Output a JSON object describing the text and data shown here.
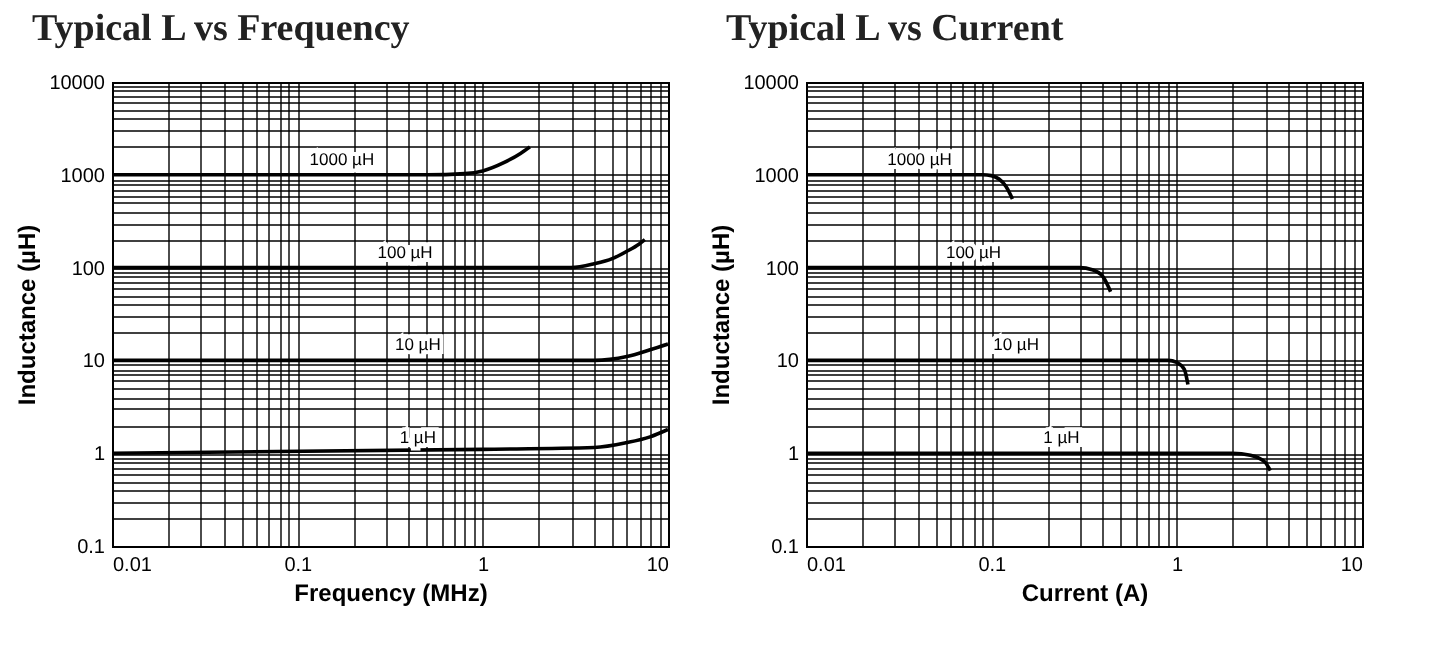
{
  "chart_data": [
    {
      "type": "line",
      "title": "Typical L vs Frequency",
      "xlabel": "Frequency (MHz)",
      "ylabel": "Inductance (µH)",
      "log": "xy",
      "grid": true,
      "xlim": [
        0.01,
        10
      ],
      "ylim": [
        0.1,
        10000
      ],
      "xticks": [
        0.01,
        {
          "value": 0.02,
          "label": null
        },
        {
          "value": 0.03,
          "label": null
        },
        {
          "value": 0.04,
          "label": null
        },
        {
          "value": 0.05,
          "label": null
        },
        {
          "value": 0.06,
          "label": null
        },
        {
          "value": 0.07,
          "label": null
        },
        {
          "value": 0.08,
          "label": null
        },
        {
          "value": 0.09,
          "label": null
        },
        0.1,
        {
          "value": 0.2,
          "label": null
        },
        {
          "value": 0.3,
          "label": null
        },
        {
          "value": 0.4,
          "label": null
        },
        {
          "value": 0.5,
          "label": null
        },
        {
          "value": 0.6,
          "label": null
        },
        {
          "value": 0.7,
          "label": null
        },
        {
          "value": 0.8,
          "label": null
        },
        {
          "value": 0.9,
          "label": null
        },
        1,
        {
          "value": 2,
          "label": null
        },
        {
          "value": 3,
          "label": null
        },
        {
          "value": 4,
          "label": null
        },
        {
          "value": 5,
          "label": null
        },
        {
          "value": 6,
          "label": null
        },
        {
          "value": 7,
          "label": null
        },
        {
          "value": 8,
          "label": null
        },
        {
          "value": 9,
          "label": null
        },
        10
      ],
      "yticks": [
        0.1,
        {
          "value": 0.2,
          "label": null
        },
        {
          "value": 0.3,
          "label": null
        },
        {
          "value": 0.4,
          "label": null
        },
        {
          "value": 0.5,
          "label": null
        },
        {
          "value": 0.6,
          "label": null
        },
        {
          "value": 0.7,
          "label": null
        },
        {
          "value": 0.8,
          "label": null
        },
        {
          "value": 0.9,
          "label": null
        },
        1,
        {
          "value": 2,
          "label": null
        },
        {
          "value": 3,
          "label": null
        },
        {
          "value": 4,
          "label": null
        },
        {
          "value": 5,
          "label": null
        },
        {
          "value": 6,
          "label": null
        },
        {
          "value": 7,
          "label": null
        },
        {
          "value": 8,
          "label": null
        },
        {
          "value": 9,
          "label": null
        },
        10,
        {
          "value": 20,
          "label": null
        },
        {
          "value": 30,
          "label": null
        },
        {
          "value": 40,
          "label": null
        },
        {
          "value": 50,
          "label": null
        },
        {
          "value": 60,
          "label": null
        },
        {
          "value": 70,
          "label": null
        },
        {
          "value": 80,
          "label": null
        },
        {
          "value": 90,
          "label": null
        },
        100,
        {
          "value": 200,
          "label": null
        },
        {
          "value": 300,
          "label": null
        },
        {
          "value": 400,
          "label": null
        },
        {
          "value": 500,
          "label": null
        },
        {
          "value": 600,
          "label": null
        },
        {
          "value": 700,
          "label": null
        },
        {
          "value": 800,
          "label": null
        },
        {
          "value": 900,
          "label": null
        },
        1000,
        {
          "value": 2000,
          "label": null
        },
        {
          "value": 3000,
          "label": null
        },
        {
          "value": 4000,
          "label": null
        },
        {
          "value": 5000,
          "label": null
        },
        {
          "value": 6000,
          "label": null
        },
        {
          "value": 7000,
          "label": null
        },
        {
          "value": 8000,
          "label": null
        },
        {
          "value": 9000,
          "label": null
        },
        10000
      ],
      "series": [
        {
          "name": "1000 µH",
          "color": "#000000",
          "x": [
            0.01,
            0.5,
            0.8,
            1,
            1.3,
            1.6,
            1.8
          ],
          "values": [
            1000,
            1000,
            1030,
            1100,
            1350,
            1700,
            2000
          ]
        },
        {
          "name": "100 µH",
          "color": "#000000",
          "x": [
            0.01,
            3,
            4,
            5,
            6,
            7,
            7.5
          ],
          "values": [
            100,
            100,
            110,
            125,
            150,
            180,
            200
          ]
        },
        {
          "name": "10 µH",
          "color": "#000000",
          "x": [
            0.01,
            4,
            6,
            8,
            10
          ],
          "values": [
            10,
            10,
            11,
            13,
            15
          ]
        },
        {
          "name": "1 µH",
          "color": "#000000",
          "x": [
            0.01,
            1,
            4,
            6,
            8,
            10
          ],
          "values": [
            1,
            1.1,
            1.15,
            1.3,
            1.5,
            1.8
          ]
        }
      ]
    },
    {
      "type": "line",
      "title": "Typical L vs Current",
      "xlabel": "Current (A)",
      "ylabel": "Inductance (µH)",
      "log": "xy",
      "grid": true,
      "xlim": [
        0.01,
        10
      ],
      "ylim": [
        0.1,
        10000
      ],
      "xticks": [
        0.01,
        {
          "value": 0.02,
          "label": null
        },
        {
          "value": 0.03,
          "label": null
        },
        {
          "value": 0.04,
          "label": null
        },
        {
          "value": 0.05,
          "label": null
        },
        {
          "value": 0.06,
          "label": null
        },
        {
          "value": 0.07,
          "label": null
        },
        {
          "value": 0.08,
          "label": null
        },
        {
          "value": 0.09,
          "label": null
        },
        0.1,
        {
          "value": 0.2,
          "label": null
        },
        {
          "value": 0.3,
          "label": null
        },
        {
          "value": 0.4,
          "label": null
        },
        {
          "value": 0.5,
          "label": null
        },
        {
          "value": 0.6,
          "label": null
        },
        {
          "value": 0.7,
          "label": null
        },
        {
          "value": 0.8,
          "label": null
        },
        {
          "value": 0.9,
          "label": null
        },
        1,
        {
          "value": 2,
          "label": null
        },
        {
          "value": 3,
          "label": null
        },
        {
          "value": 4,
          "label": null
        },
        {
          "value": 5,
          "label": null
        },
        {
          "value": 6,
          "label": null
        },
        {
          "value": 7,
          "label": null
        },
        {
          "value": 8,
          "label": null
        },
        {
          "value": 9,
          "label": null
        },
        10
      ],
      "yticks": [
        0.1,
        {
          "value": 0.2,
          "label": null
        },
        {
          "value": 0.3,
          "label": null
        },
        {
          "value": 0.4,
          "label": null
        },
        {
          "value": 0.5,
          "label": null
        },
        {
          "value": 0.6,
          "label": null
        },
        {
          "value": 0.7,
          "label": null
        },
        {
          "value": 0.8,
          "label": null
        },
        {
          "value": 0.9,
          "label": null
        },
        1,
        {
          "value": 2,
          "label": null
        },
        {
          "value": 3,
          "label": null
        },
        {
          "value": 4,
          "label": null
        },
        {
          "value": 5,
          "label": null
        },
        {
          "value": 6,
          "label": null
        },
        {
          "value": 7,
          "label": null
        },
        {
          "value": 8,
          "label": null
        },
        {
          "value": 9,
          "label": null
        },
        10,
        {
          "value": 20,
          "label": null
        },
        {
          "value": 30,
          "label": null
        },
        {
          "value": 40,
          "label": null
        },
        {
          "value": 50,
          "label": null
        },
        {
          "value": 60,
          "label": null
        },
        {
          "value": 70,
          "label": null
        },
        {
          "value": 80,
          "label": null
        },
        {
          "value": 90,
          "label": null
        },
        100,
        {
          "value": 200,
          "label": null
        },
        {
          "value": 300,
          "label": null
        },
        {
          "value": 400,
          "label": null
        },
        {
          "value": 500,
          "label": null
        },
        {
          "value": 600,
          "label": null
        },
        {
          "value": 700,
          "label": null
        },
        {
          "value": 800,
          "label": null
        },
        {
          "value": 900,
          "label": null
        },
        1000,
        {
          "value": 2000,
          "label": null
        },
        {
          "value": 3000,
          "label": null
        },
        {
          "value": 4000,
          "label": null
        },
        {
          "value": 5000,
          "label": null
        },
        {
          "value": 6000,
          "label": null
        },
        {
          "value": 7000,
          "label": null
        },
        {
          "value": 8000,
          "label": null
        },
        {
          "value": 9000,
          "label": null
        },
        10000
      ],
      "series": [
        {
          "name": "1000 µH",
          "color": "#000000",
          "x": [
            0.01,
            0.09,
            0.1,
            0.11,
            0.12,
            0.13
          ],
          "values": [
            1000,
            1000,
            980,
            900,
            750,
            550
          ]
        },
        {
          "name": "100 µH",
          "color": "#000000",
          "x": [
            0.01,
            0.3,
            0.35,
            0.4,
            0.44
          ],
          "values": [
            100,
            100,
            95,
            80,
            55
          ]
        },
        {
          "name": "10 µH",
          "color": "#000000",
          "x": [
            0.01,
            0.9,
            1,
            1.1,
            1.15
          ],
          "values": [
            10,
            10,
            9.5,
            8,
            5.5
          ]
        },
        {
          "name": "1 µH",
          "color": "#000000",
          "x": [
            0.01,
            2,
            2.5,
            3,
            3.2
          ],
          "values": [
            1,
            1,
            0.95,
            0.8,
            0.65
          ]
        }
      ]
    }
  ]
}
